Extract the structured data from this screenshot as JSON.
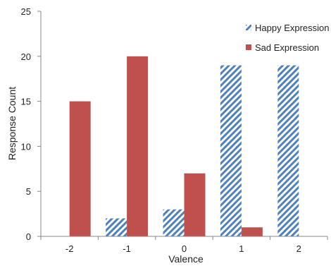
{
  "chart_data": {
    "type": "bar",
    "categories": [
      "-2",
      "-1",
      "0",
      "1",
      "2"
    ],
    "series": [
      {
        "name": "Happy Expression",
        "values": [
          0,
          2,
          3,
          19,
          19
        ],
        "color": "#4F81BD",
        "pattern": "diagonal-stripes"
      },
      {
        "name": "Sad Expression",
        "values": [
          15,
          20,
          7,
          1,
          0
        ],
        "color": "#C0504D",
        "pattern": "solid"
      }
    ],
    "xlabel": "Valence",
    "ylabel": "Response Count",
    "ylim": [
      0,
      25
    ],
    "yticks": [
      0,
      5,
      10,
      15,
      20,
      25
    ],
    "grid": false,
    "legend_position": "top-right"
  }
}
